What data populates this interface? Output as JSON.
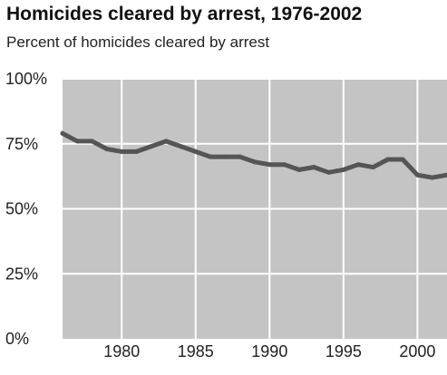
{
  "chart_data": {
    "type": "line",
    "title": "Homicides cleared by arrest, 1976-2002",
    "subtitle": "Percent of homicides cleared by arrest",
    "xlabel": "",
    "ylabel": "",
    "xlim": [
      1976,
      2002
    ],
    "ylim": [
      0,
      100
    ],
    "x_ticks": [
      1980,
      1985,
      1990,
      1995,
      2000
    ],
    "x_tick_labels": [
      "1980",
      "1985",
      "1990",
      "1995",
      "2000"
    ],
    "y_ticks": [
      0,
      25,
      50,
      75,
      100
    ],
    "y_tick_labels": [
      "0%",
      "25%",
      "50%",
      "75%",
      "100%"
    ],
    "grid": true,
    "colors": {
      "plot_background": "#c4c4c4",
      "grid": "#ffffff",
      "line": "#555555"
    },
    "series": [
      {
        "x": [
          1976,
          1977,
          1978,
          1979,
          1980,
          1981,
          1982,
          1983,
          1984,
          1985,
          1986,
          1987,
          1988,
          1989,
          1990,
          1991,
          1992,
          1993,
          1994,
          1995,
          1996,
          1997,
          1998,
          1999,
          2000,
          2001,
          2002
        ],
        "values": [
          79,
          76,
          76,
          73,
          72,
          72,
          74,
          76,
          74,
          72,
          70,
          70,
          70,
          68,
          67,
          67,
          65,
          66,
          64,
          65,
          67,
          66,
          69,
          69,
          63,
          62,
          63
        ]
      }
    ]
  }
}
